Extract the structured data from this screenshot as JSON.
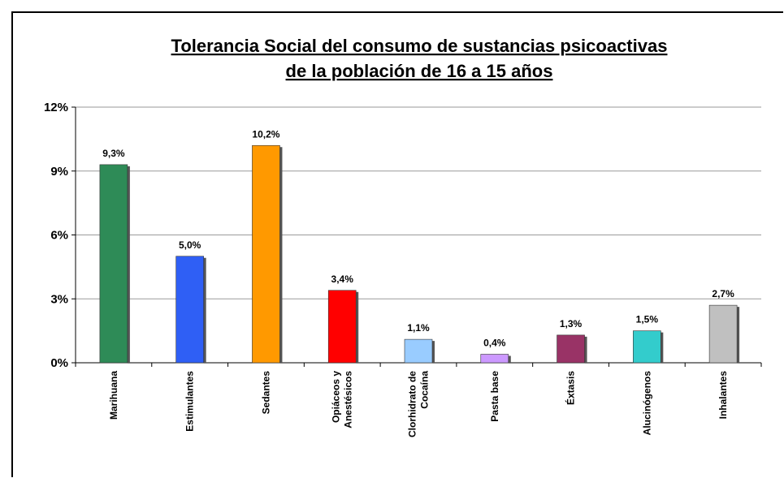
{
  "chart_data": {
    "type": "bar",
    "title": [
      "Tolerancia Social del consumo de sustancias psicoactivas",
      "de la población de 16 a 15 años"
    ],
    "categories": [
      [
        "Marihuana"
      ],
      [
        "Estimulantes"
      ],
      [
        "Sedantes"
      ],
      [
        "Opiáceos y",
        "Anestésicos"
      ],
      [
        "Clorhidrato de",
        "Cocaína"
      ],
      [
        "Pasta base"
      ],
      [
        "Éxtasis"
      ],
      [
        "Alucinógenos"
      ],
      [
        "Inhalantes"
      ]
    ],
    "values": [
      9.3,
      5.0,
      10.2,
      3.4,
      1.1,
      0.4,
      1.3,
      1.5,
      2.7
    ],
    "data_labels": [
      "9,3%",
      "5,0%",
      "10,2%",
      "3,4%",
      "1,1%",
      "0,4%",
      "1,3%",
      "1,5%",
      "2,7%"
    ],
    "colors": [
      "#2e8b57",
      "#2f5ff5",
      "#ff9900",
      "#ff0000",
      "#99ccff",
      "#cc99ff",
      "#993366",
      "#33cccc",
      "#c0c0c0"
    ],
    "yticks": [
      "0%",
      "3%",
      "6%",
      "9%",
      "12%"
    ],
    "ytick_values": [
      0,
      3,
      6,
      9,
      12
    ],
    "ylim": [
      0,
      12
    ],
    "grid": true,
    "legend": false,
    "xlabel": "",
    "ylabel": ""
  }
}
